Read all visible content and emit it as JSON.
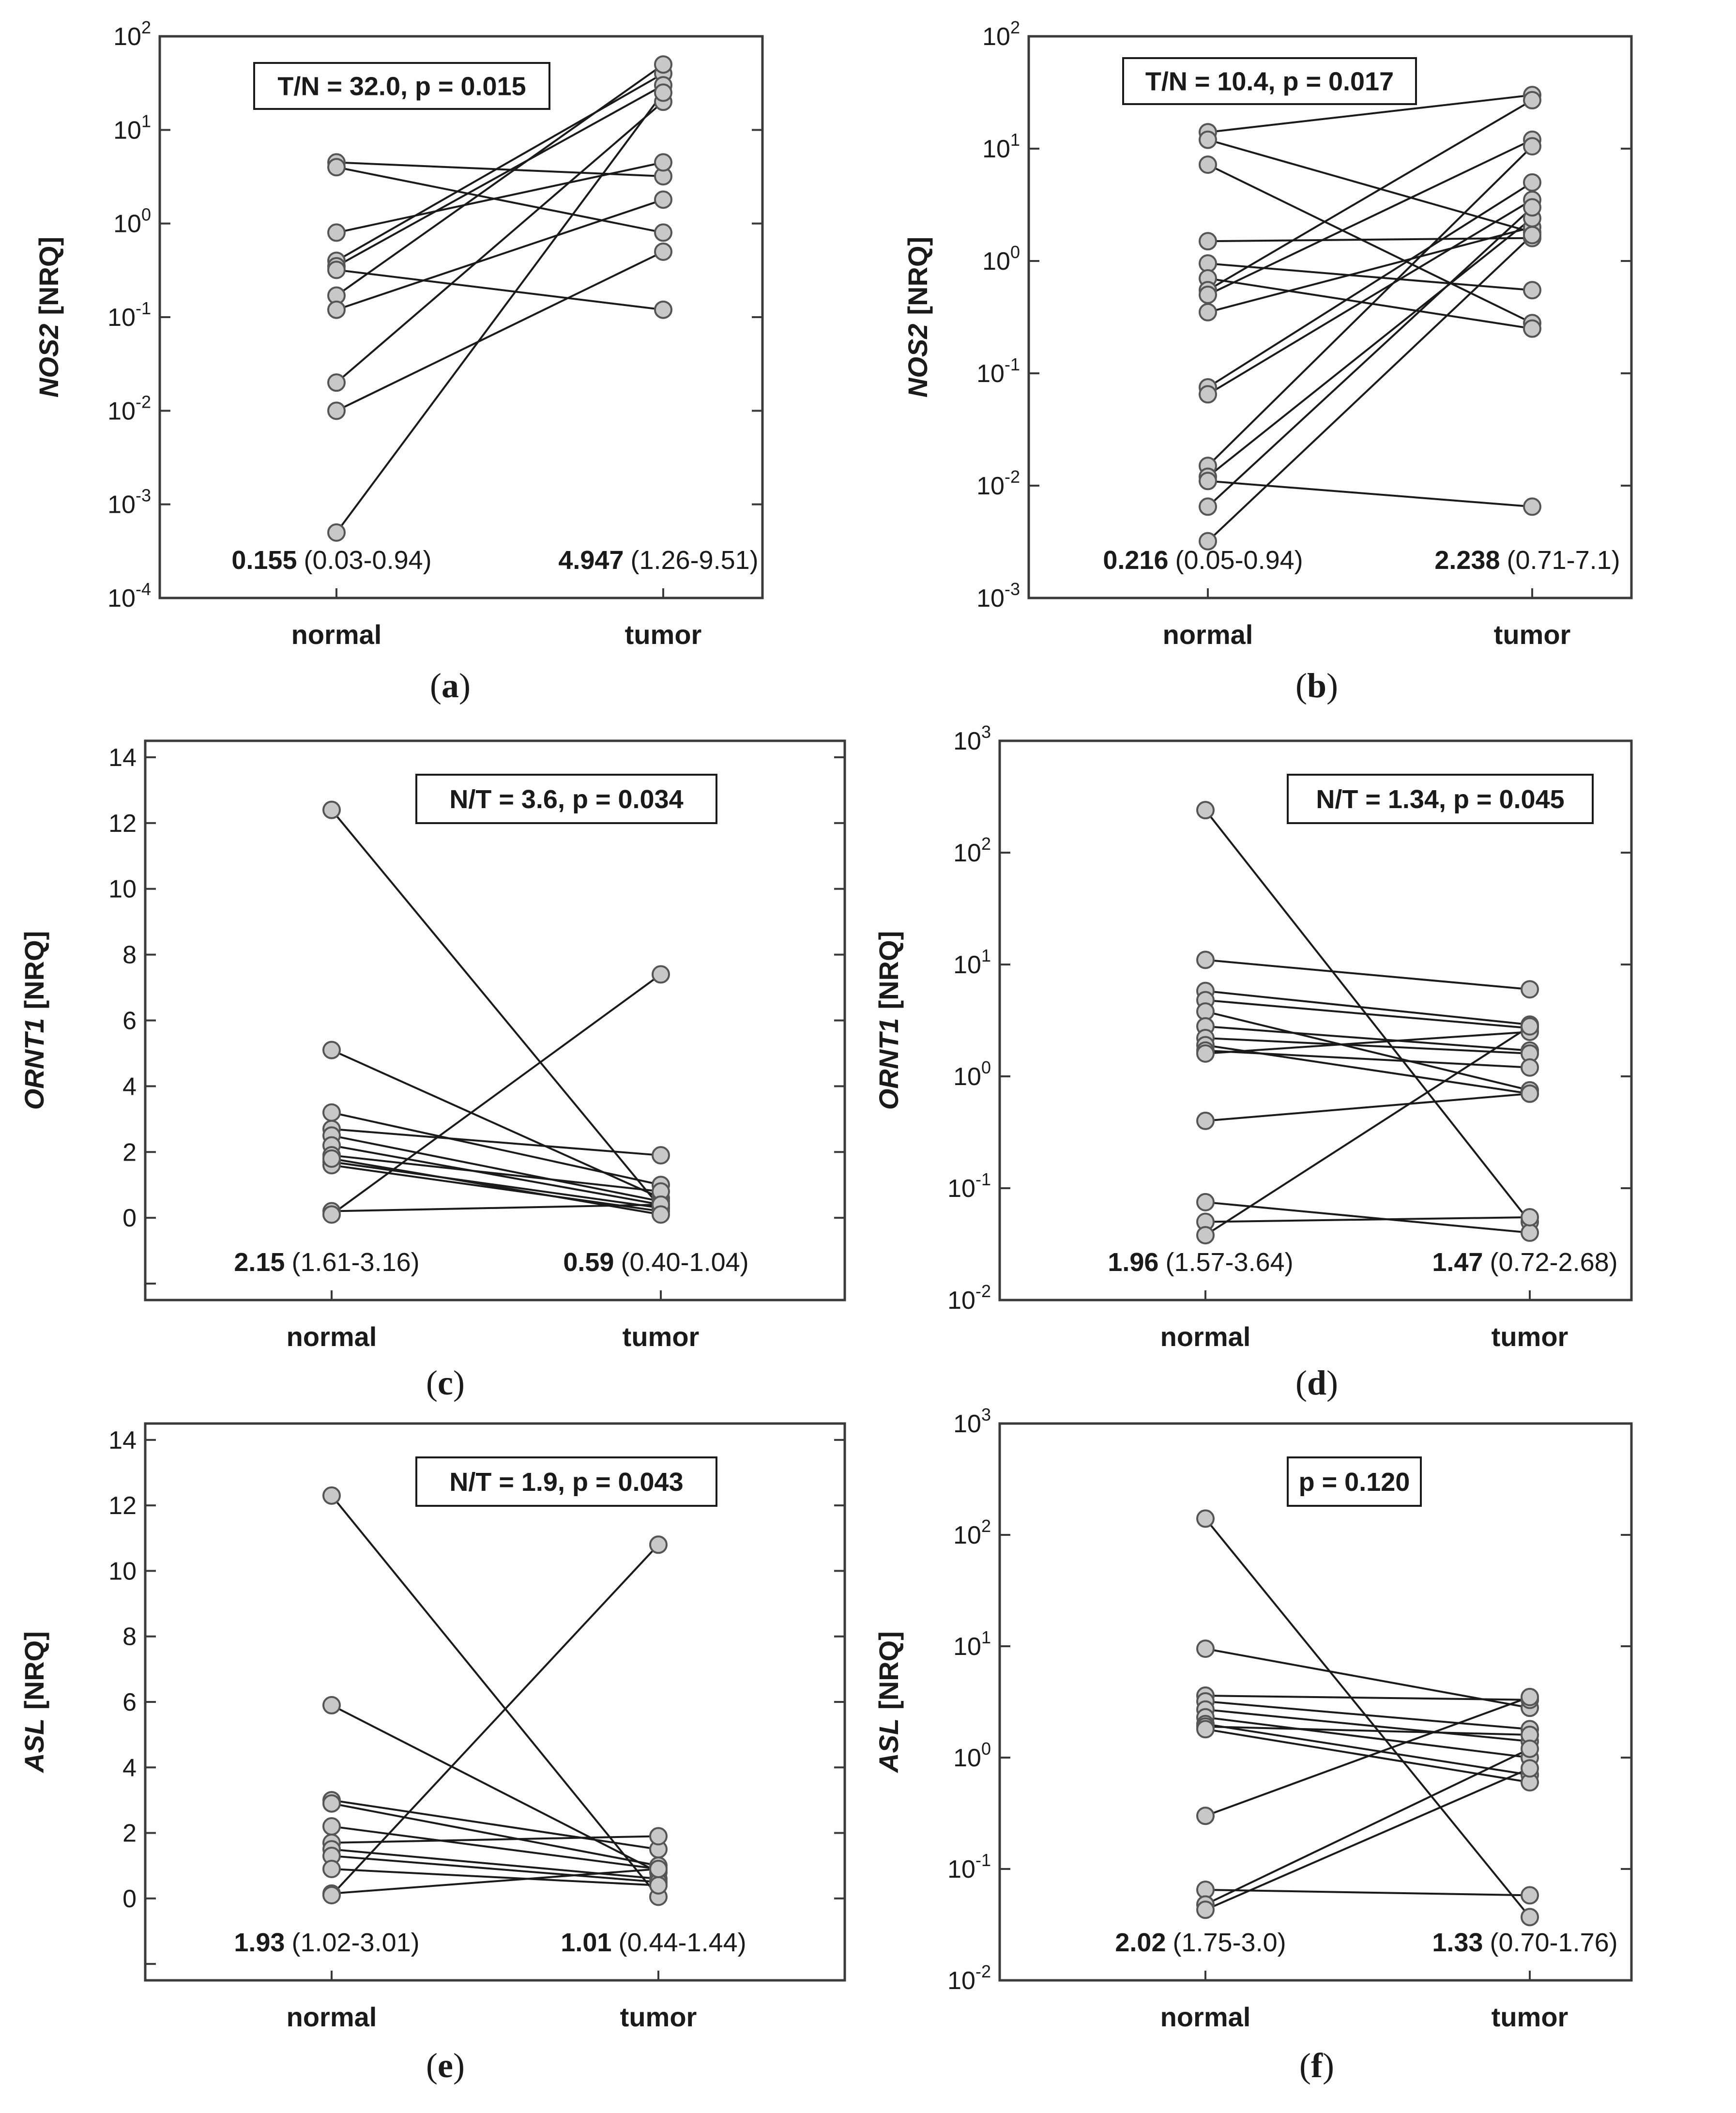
{
  "figure": {
    "panel_labels": [
      {
        "open": "(",
        "letter": "a",
        "close": ")"
      },
      {
        "open": "(",
        "letter": "b",
        "close": ")"
      },
      {
        "open": "(",
        "letter": "c",
        "close": ")"
      },
      {
        "open": "(",
        "letter": "d",
        "close": ")"
      },
      {
        "open": "(",
        "letter": "e",
        "close": ")"
      },
      {
        "open": "(",
        "letter": "f",
        "close": ")"
      }
    ]
  },
  "chart_data": [
    {
      "type": "line",
      "panel": "a",
      "title": "",
      "ylabel_gene": "NOS2",
      "ylabel_unit": "[NRQ]",
      "yscale": "log",
      "ylim": [
        0.0001,
        100
      ],
      "y_ticks": [
        {
          "base": "10",
          "exp": "-4"
        },
        {
          "base": "10",
          "exp": "-3"
        },
        {
          "base": "10",
          "exp": "-2"
        },
        {
          "base": "10",
          "exp": "-1"
        },
        {
          "base": "10",
          "exp": "0"
        },
        {
          "base": "10",
          "exp": "1"
        },
        {
          "base": "10",
          "exp": "2"
        }
      ],
      "categories": [
        "normal",
        "tumor"
      ],
      "stat": "T/N = 32.0, p = 0.015",
      "medians": [
        {
          "value": "0.155",
          "range": "(0.03-0.94)"
        },
        {
          "value": "4.947",
          "range": "(1.26-9.51)"
        }
      ],
      "pairs": [
        [
          4.5,
          3.2
        ],
        [
          4.0,
          0.8
        ],
        [
          0.8,
          4.5
        ],
        [
          0.4,
          40
        ],
        [
          0.35,
          30
        ],
        [
          0.32,
          0.12
        ],
        [
          0.17,
          50
        ],
        [
          0.12,
          1.8
        ],
        [
          0.02,
          20
        ],
        [
          0.01,
          0.5
        ],
        [
          0.0005,
          25
        ]
      ]
    },
    {
      "type": "line",
      "panel": "b",
      "title": "",
      "ylabel_gene": "NOS2",
      "ylabel_unit": "[NRQ]",
      "yscale": "log",
      "ylim": [
        0.001,
        100
      ],
      "y_ticks": [
        {
          "base": "10",
          "exp": "-3"
        },
        {
          "base": "10",
          "exp": "-2"
        },
        {
          "base": "10",
          "exp": "-1"
        },
        {
          "base": "10",
          "exp": "0"
        },
        {
          "base": "10",
          "exp": "1"
        },
        {
          "base": "10",
          "exp": "2"
        }
      ],
      "categories": [
        "normal",
        "tumor"
      ],
      "stat": "T/N = 10.4, p = 0.017",
      "medians": [
        {
          "value": "0.216",
          "range": "(0.05-0.94)"
        },
        {
          "value": "2.238",
          "range": "(0.71-7.1)"
        }
      ],
      "pairs": [
        [
          14,
          30
        ],
        [
          12,
          1.8
        ],
        [
          7.2,
          0.28
        ],
        [
          1.5,
          1.6
        ],
        [
          0.95,
          0.55
        ],
        [
          0.7,
          0.25
        ],
        [
          0.55,
          27
        ],
        [
          0.5,
          12
        ],
        [
          0.35,
          2.0
        ],
        [
          0.075,
          5.0
        ],
        [
          0.065,
          3.5
        ],
        [
          0.015,
          10.5
        ],
        [
          0.012,
          2.4
        ],
        [
          0.011,
          0.0065
        ],
        [
          0.0065,
          3.0
        ],
        [
          0.0032,
          1.7
        ]
      ]
    },
    {
      "type": "line",
      "panel": "c",
      "title": "",
      "ylabel_gene": "ORNT1",
      "ylabel_unit": "[NRQ]",
      "yscale": "linear",
      "ylim": [
        -2.5,
        14.5
      ],
      "y_ticks": [
        {
          "base": "0"
        },
        {
          "base": "2"
        },
        {
          "base": "4"
        },
        {
          "base": "6"
        },
        {
          "base": "8"
        },
        {
          "base": "10"
        },
        {
          "base": "12"
        },
        {
          "base": "14"
        }
      ],
      "categories": [
        "normal",
        "tumor"
      ],
      "stat": "N/T = 3.6, p = 0.034",
      "medians": [
        {
          "value": "2.15",
          "range": "(1.61-3.16)"
        },
        {
          "value": "0.59",
          "range": "(0.40-1.04)"
        }
      ],
      "pairs": [
        [
          12.4,
          0.3
        ],
        [
          5.1,
          0.6
        ],
        [
          3.2,
          1.0
        ],
        [
          2.7,
          1.9
        ],
        [
          2.5,
          0.5
        ],
        [
          2.2,
          0.4
        ],
        [
          1.9,
          0.8
        ],
        [
          1.7,
          0.3
        ],
        [
          1.6,
          0.2
        ],
        [
          0.2,
          0.4
        ],
        [
          0.1,
          7.4
        ],
        [
          1.8,
          0.1
        ]
      ]
    },
    {
      "type": "line",
      "panel": "d",
      "title": "",
      "ylabel_gene": "ORNT1",
      "ylabel_unit": "[NRQ]",
      "yscale": "log",
      "ylim": [
        0.01,
        1000
      ],
      "y_ticks": [
        {
          "base": "10",
          "exp": "-2"
        },
        {
          "base": "10",
          "exp": "-1"
        },
        {
          "base": "10",
          "exp": "0"
        },
        {
          "base": "10",
          "exp": "1"
        },
        {
          "base": "10",
          "exp": "2"
        },
        {
          "base": "10",
          "exp": "3"
        }
      ],
      "categories": [
        "normal",
        "tumor"
      ],
      "stat": "N/T = 1.34, p = 0.045",
      "medians": [
        {
          "value": "1.96",
          "range": "(1.57-3.64)"
        },
        {
          "value": "1.47",
          "range": "(0.72-2.68)"
        }
      ],
      "pairs": [
        [
          240,
          0.05
        ],
        [
          11,
          6
        ],
        [
          5.8,
          2.9
        ],
        [
          4.8,
          2.7
        ],
        [
          3.8,
          0.75
        ],
        [
          2.8,
          1.7
        ],
        [
          2.2,
          1.6
        ],
        [
          1.9,
          0.7
        ],
        [
          1.7,
          1.2
        ],
        [
          1.6,
          2.5
        ],
        [
          0.4,
          0.7
        ],
        [
          0.075,
          0.04
        ],
        [
          0.05,
          0.055
        ],
        [
          0.038,
          2.8
        ]
      ]
    },
    {
      "type": "line",
      "panel": "e",
      "title": "",
      "ylabel_gene": "ASL",
      "ylabel_unit": "[NRQ]",
      "yscale": "linear",
      "ylim": [
        -2.5,
        14.5
      ],
      "y_ticks": [
        {
          "base": "0"
        },
        {
          "base": "2"
        },
        {
          "base": "4"
        },
        {
          "base": "6"
        },
        {
          "base": "8"
        },
        {
          "base": "10"
        },
        {
          "base": "12"
        },
        {
          "base": "14"
        }
      ],
      "categories": [
        "normal",
        "tumor"
      ],
      "stat": "N/T = 1.9, p = 0.043",
      "medians": [
        {
          "value": "1.93",
          "range": "(1.02-3.01)"
        },
        {
          "value": "1.01",
          "range": "(0.44-1.44)"
        }
      ],
      "pairs": [
        [
          12.3,
          0.05
        ],
        [
          5.9,
          0.8
        ],
        [
          3.0,
          1.5
        ],
        [
          2.9,
          1.0
        ],
        [
          2.2,
          0.9
        ],
        [
          1.7,
          1.9
        ],
        [
          1.5,
          0.6
        ],
        [
          1.3,
          0.5
        ],
        [
          0.9,
          0.4
        ],
        [
          0.15,
          0.9
        ],
        [
          0.1,
          10.8
        ]
      ]
    },
    {
      "type": "line",
      "panel": "f",
      "title": "",
      "ylabel_gene": "ASL",
      "ylabel_unit": "[NRQ]",
      "yscale": "log",
      "ylim": [
        0.01,
        1000
      ],
      "y_ticks": [
        {
          "base": "10",
          "exp": "-2"
        },
        {
          "base": "10",
          "exp": "-1"
        },
        {
          "base": "10",
          "exp": "0"
        },
        {
          "base": "10",
          "exp": "1"
        },
        {
          "base": "10",
          "exp": "2"
        },
        {
          "base": "10",
          "exp": "3"
        }
      ],
      "categories": [
        "normal",
        "tumor"
      ],
      "stat": "p = 0.120",
      "medians": [
        {
          "value": "2.02",
          "range": "(1.75-3.0)"
        },
        {
          "value": "1.33",
          "range": "(0.70-1.76)"
        }
      ],
      "pairs": [
        [
          140,
          0.037
        ],
        [
          9.5,
          2.8
        ],
        [
          3.6,
          3.3
        ],
        [
          3.2,
          1.8
        ],
        [
          2.7,
          1.4
        ],
        [
          2.3,
          1.0
        ],
        [
          2.0,
          0.7
        ],
        [
          1.9,
          1.6
        ],
        [
          1.8,
          0.6
        ],
        [
          0.3,
          3.5
        ],
        [
          0.065,
          0.058
        ],
        [
          0.048,
          1.2
        ],
        [
          0.043,
          0.8
        ]
      ]
    }
  ]
}
